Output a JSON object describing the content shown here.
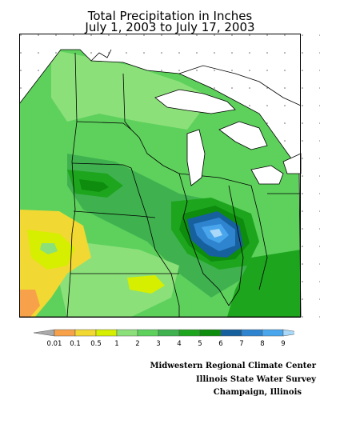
{
  "title": {
    "line1": "Total Precipitation in Inches",
    "line2": "July 1, 2003 to July 17, 2003"
  },
  "legend": {
    "bins": [
      {
        "label": "",
        "color": "#aaaaaa"
      },
      {
        "label": "0.01",
        "color": "#f7a24a"
      },
      {
        "label": "0.1",
        "color": "#f2d832"
      },
      {
        "label": "0.5",
        "color": "#d6ee00"
      },
      {
        "label": "1",
        "color": "#8be07a"
      },
      {
        "label": "2",
        "color": "#5dd15c"
      },
      {
        "label": "3",
        "color": "#3fb24f"
      },
      {
        "label": "4",
        "color": "#1ea51e"
      },
      {
        "label": "5",
        "color": "#0d8c0d"
      },
      {
        "label": "6",
        "color": "#16609e"
      },
      {
        "label": "7",
        "color": "#2f84d0"
      },
      {
        "label": "8",
        "color": "#4aa6ec"
      },
      {
        "label": "9",
        "color": "#a9d8f8"
      }
    ]
  },
  "credits": {
    "line1": "Midwestern Regional Climate Center",
    "line2": "Illinois State Water Survey",
    "line3": "Champaign, Illinois"
  }
}
